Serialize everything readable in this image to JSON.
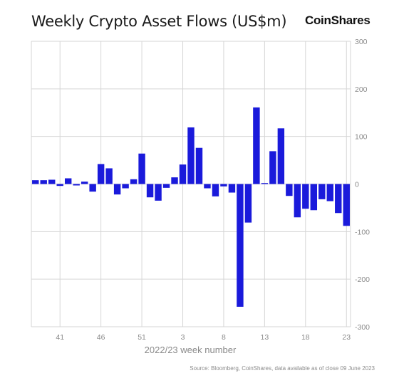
{
  "header": {
    "title": "Weekly Crypto Asset Flows (US$m)",
    "brand": "CoinShares"
  },
  "footer": {
    "source": "Source: Bloomberg, CoinShares, data available as of close 09 June 2023"
  },
  "colors": {
    "bar": "#1a1adb",
    "grid": "#d6d6d6",
    "axis_text": "#8a8a8a"
  },
  "chart_data": {
    "type": "bar",
    "title": "Weekly Crypto Asset Flows (US$m)",
    "xlabel": "2022/23 week number",
    "ylabel": "",
    "ylim": [
      -300,
      300
    ],
    "yticks": [
      300,
      200,
      100,
      0,
      -100,
      -200,
      -300
    ],
    "y_axis_side": "right",
    "grid": true,
    "xtick_labels": [
      {
        "label": "41",
        "index": 3
      },
      {
        "label": "46",
        "index": 8
      },
      {
        "label": "51",
        "index": 13
      },
      {
        "label": "3",
        "index": 18
      },
      {
        "label": "8",
        "index": 23
      },
      {
        "label": "13",
        "index": 28
      },
      {
        "label": "18",
        "index": 33
      },
      {
        "label": "23",
        "index": 38
      }
    ],
    "values": [
      8,
      8,
      9,
      -4,
      12,
      -3,
      5,
      -16,
      42,
      33,
      -22,
      -9,
      10,
      64,
      -28,
      -35,
      -8,
      14,
      41,
      119,
      76,
      -9,
      -26,
      -5,
      -18,
      -258,
      -81,
      161,
      2,
      69,
      117,
      -25,
      -70,
      -52,
      -55,
      -32,
      -36,
      -61,
      -88
    ]
  }
}
